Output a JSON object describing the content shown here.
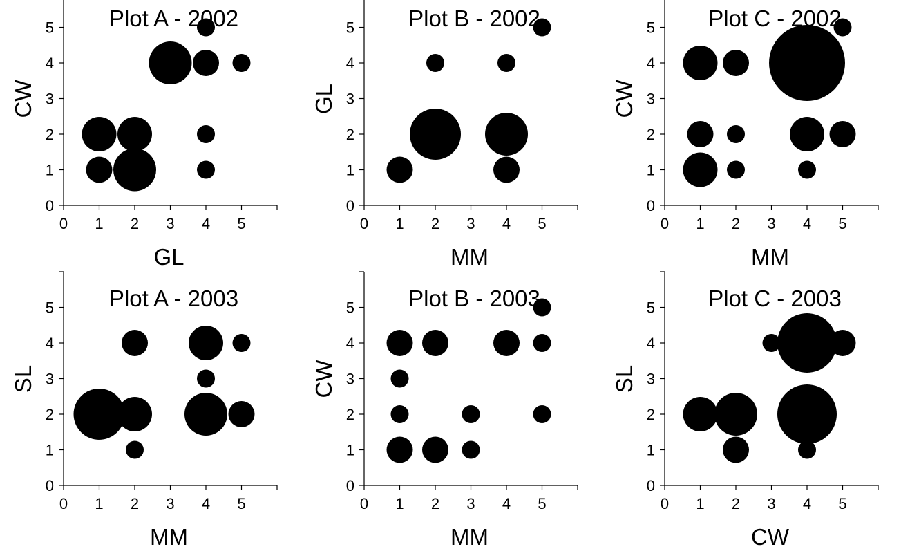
{
  "chart_data": [
    {
      "type": "scatter",
      "title": "Plot A - 2002",
      "xlabel": "GL",
      "ylabel": "CW",
      "xlim": [
        0,
        6
      ],
      "ylim": [
        0,
        6
      ],
      "xticks": [
        "0",
        "1",
        "2",
        "3",
        "4",
        "5"
      ],
      "yticks": [
        "0",
        "1",
        "2",
        "3",
        "4",
        "5"
      ],
      "grid": false,
      "points": [
        {
          "x": 1,
          "y": 1,
          "size": 2
        },
        {
          "x": 1,
          "y": 2,
          "size": 3
        },
        {
          "x": 2,
          "y": 1,
          "size": 4
        },
        {
          "x": 2,
          "y": 2,
          "size": 3
        },
        {
          "x": 3,
          "y": 4,
          "size": 4
        },
        {
          "x": 4,
          "y": 1,
          "size": 1
        },
        {
          "x": 4,
          "y": 2,
          "size": 1
        },
        {
          "x": 4,
          "y": 4,
          "size": 2
        },
        {
          "x": 4,
          "y": 5,
          "size": 1
        },
        {
          "x": 5,
          "y": 4,
          "size": 1
        }
      ]
    },
    {
      "type": "scatter",
      "title": "Plot B - 2002",
      "xlabel": "MM",
      "ylabel": "GL",
      "xlim": [
        0,
        6
      ],
      "ylim": [
        0,
        6
      ],
      "xticks": [
        "0",
        "1",
        "2",
        "3",
        "4",
        "5"
      ],
      "yticks": [
        "0",
        "1",
        "2",
        "3",
        "4",
        "5"
      ],
      "grid": false,
      "points": [
        {
          "x": 1,
          "y": 1,
          "size": 2
        },
        {
          "x": 2,
          "y": 2,
          "size": 5
        },
        {
          "x": 2,
          "y": 4,
          "size": 1
        },
        {
          "x": 4,
          "y": 1,
          "size": 2
        },
        {
          "x": 4,
          "y": 2,
          "size": 4
        },
        {
          "x": 4,
          "y": 4,
          "size": 1
        },
        {
          "x": 5,
          "y": 5,
          "size": 1
        }
      ]
    },
    {
      "type": "scatter",
      "title": "Plot C - 2002",
      "xlabel": "MM",
      "ylabel": "CW",
      "xlim": [
        0,
        6
      ],
      "ylim": [
        0,
        6
      ],
      "xticks": [
        "0",
        "1",
        "2",
        "3",
        "4",
        "5"
      ],
      "yticks": [
        "0",
        "1",
        "2",
        "3",
        "4",
        "5"
      ],
      "grid": false,
      "points": [
        {
          "x": 1,
          "y": 1,
          "size": 3
        },
        {
          "x": 1,
          "y": 2,
          "size": 2
        },
        {
          "x": 1,
          "y": 4,
          "size": 3
        },
        {
          "x": 2,
          "y": 1,
          "size": 1
        },
        {
          "x": 2,
          "y": 2,
          "size": 1
        },
        {
          "x": 2,
          "y": 4,
          "size": 2
        },
        {
          "x": 4,
          "y": 1,
          "size": 1
        },
        {
          "x": 4,
          "y": 2,
          "size": 3
        },
        {
          "x": 4,
          "y": 4,
          "size": 8
        },
        {
          "x": 5,
          "y": 2,
          "size": 2
        },
        {
          "x": 5,
          "y": 5,
          "size": 1
        }
      ]
    },
    {
      "type": "scatter",
      "title": "Plot A - 2003",
      "xlabel": "MM",
      "ylabel": "SL",
      "xlim": [
        0,
        6
      ],
      "ylim": [
        0,
        6
      ],
      "xticks": [
        "0",
        "1",
        "2",
        "3",
        "4",
        "5"
      ],
      "yticks": [
        "0",
        "1",
        "2",
        "3",
        "4",
        "5"
      ],
      "grid": false,
      "points": [
        {
          "x": 1,
          "y": 2,
          "size": 5
        },
        {
          "x": 2,
          "y": 1,
          "size": 1
        },
        {
          "x": 2,
          "y": 2,
          "size": 3
        },
        {
          "x": 2,
          "y": 4,
          "size": 2
        },
        {
          "x": 4,
          "y": 2,
          "size": 4
        },
        {
          "x": 4,
          "y": 3,
          "size": 1
        },
        {
          "x": 4,
          "y": 4,
          "size": 3
        },
        {
          "x": 5,
          "y": 2,
          "size": 2
        },
        {
          "x": 5,
          "y": 4,
          "size": 1
        }
      ]
    },
    {
      "type": "scatter",
      "title": "Plot B - 2003",
      "xlabel": "MM",
      "ylabel": "CW",
      "xlim": [
        0,
        6
      ],
      "ylim": [
        0,
        6
      ],
      "xticks": [
        "0",
        "1",
        "2",
        "3",
        "4",
        "5"
      ],
      "yticks": [
        "0",
        "1",
        "2",
        "3",
        "4",
        "5"
      ],
      "grid": false,
      "points": [
        {
          "x": 1,
          "y": 1,
          "size": 2
        },
        {
          "x": 1,
          "y": 2,
          "size": 1
        },
        {
          "x": 1,
          "y": 3,
          "size": 1
        },
        {
          "x": 1,
          "y": 4,
          "size": 2
        },
        {
          "x": 2,
          "y": 1,
          "size": 2
        },
        {
          "x": 2,
          "y": 4,
          "size": 2
        },
        {
          "x": 3,
          "y": 1,
          "size": 1
        },
        {
          "x": 3,
          "y": 2,
          "size": 1
        },
        {
          "x": 4,
          "y": 4,
          "size": 2
        },
        {
          "x": 5,
          "y": 2,
          "size": 1
        },
        {
          "x": 5,
          "y": 4,
          "size": 1
        },
        {
          "x": 5,
          "y": 5,
          "size": 1
        }
      ]
    },
    {
      "type": "scatter",
      "title": "Plot C - 2003",
      "xlabel": "CW",
      "ylabel": "SL",
      "xlim": [
        0,
        6
      ],
      "ylim": [
        0,
        6
      ],
      "xticks": [
        "0",
        "1",
        "2",
        "3",
        "4",
        "5"
      ],
      "yticks": [
        "0",
        "1",
        "2",
        "3",
        "4",
        "5"
      ],
      "grid": false,
      "points": [
        {
          "x": 1,
          "y": 2,
          "size": 3
        },
        {
          "x": 2,
          "y": 1,
          "size": 2
        },
        {
          "x": 2,
          "y": 2,
          "size": 4
        },
        {
          "x": 3,
          "y": 4,
          "size": 1
        },
        {
          "x": 4,
          "y": 1,
          "size": 1
        },
        {
          "x": 4,
          "y": 2,
          "size": 6
        },
        {
          "x": 4,
          "y": 4,
          "size": 6
        },
        {
          "x": 5,
          "y": 4,
          "size": 2
        }
      ]
    }
  ]
}
